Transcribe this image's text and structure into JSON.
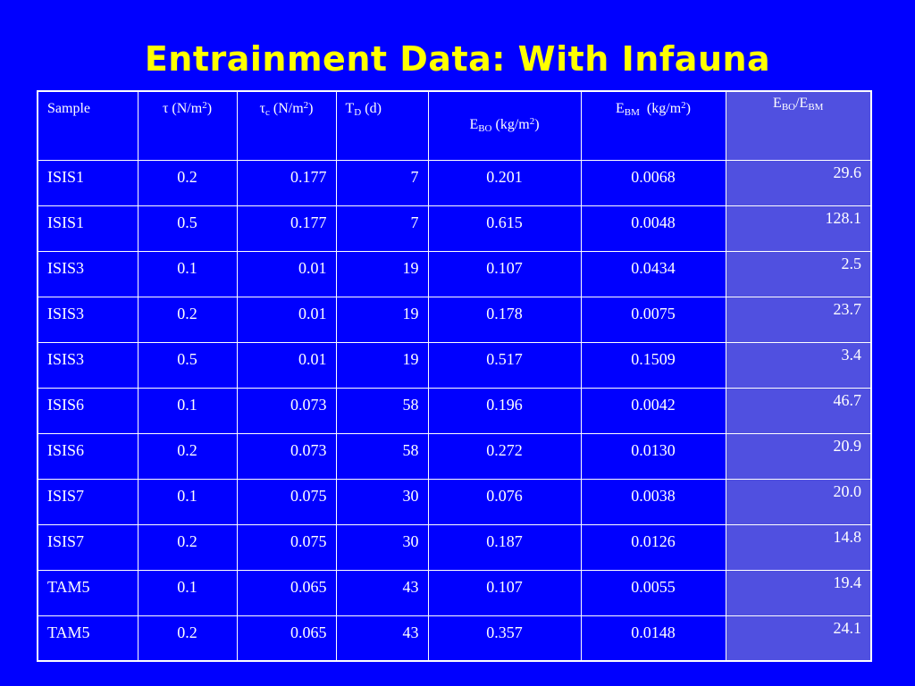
{
  "slide": {
    "title": "Entrainment Data: With Infauna"
  },
  "table": {
    "headers": {
      "sample": "Sample",
      "tau_symbol": "τ",
      "tau_unit": "(N/m",
      "tau_unit_exp": "2",
      "tau_unit_close": ")",
      "tauc_symbol": "τ",
      "tauc_sub": "c",
      "tauc_unit": "(N/m",
      "tauc_unit_exp": "2",
      "tauc_unit_close": ")",
      "td_symbol": "T",
      "td_sub": "D",
      "td_unit": "(d)",
      "ebo_symbol": "E",
      "ebo_sub": "BO",
      "ebo_unit": "(kg/m",
      "ebo_unit_exp": "2",
      "ebo_unit_close": ")",
      "ebm_symbol": "E",
      "ebm_sub": "BM",
      "ebm_unit": "(kg/m",
      "ebm_unit_exp": "2",
      "ebm_unit_close": ")",
      "ratio_num": "E",
      "ratio_num_sub": "BO",
      "ratio_slash": "/E",
      "ratio_den_sub": "BM"
    },
    "rows": [
      {
        "sample": "ISIS1",
        "tau": "0.2",
        "tau_c": "0.177",
        "t_d": "7",
        "e_bo": "0.201",
        "e_bm": "0.0068",
        "ratio": "29.6"
      },
      {
        "sample": "ISIS1",
        "tau": "0.5",
        "tau_c": "0.177",
        "t_d": "7",
        "e_bo": "0.615",
        "e_bm": "0.0048",
        "ratio": "128.1"
      },
      {
        "sample": "ISIS3",
        "tau": "0.1",
        "tau_c": "0.01",
        "t_d": "19",
        "e_bo": "0.107",
        "e_bm": "0.0434",
        "ratio": "2.5"
      },
      {
        "sample": "ISIS3",
        "tau": "0.2",
        "tau_c": "0.01",
        "t_d": "19",
        "e_bo": "0.178",
        "e_bm": "0.0075",
        "ratio": "23.7"
      },
      {
        "sample": "ISIS3",
        "tau": "0.5",
        "tau_c": "0.01",
        "t_d": "19",
        "e_bo": "0.517",
        "e_bm": "0.1509",
        "ratio": "3.4"
      },
      {
        "sample": "ISIS6",
        "tau": "0.1",
        "tau_c": "0.073",
        "t_d": "58",
        "e_bo": "0.196",
        "e_bm": "0.0042",
        "ratio": "46.7"
      },
      {
        "sample": "ISIS6",
        "tau": "0.2",
        "tau_c": "0.073",
        "t_d": "58",
        "e_bo": "0.272",
        "e_bm": "0.0130",
        "ratio": "20.9"
      },
      {
        "sample": "ISIS7",
        "tau": "0.1",
        "tau_c": "0.075",
        "t_d": "30",
        "e_bo": "0.076",
        "e_bm": "0.0038",
        "ratio": "20.0"
      },
      {
        "sample": "ISIS7",
        "tau": "0.2",
        "tau_c": "0.075",
        "t_d": "30",
        "e_bo": "0.187",
        "e_bm": "0.0126",
        "ratio": "14.8"
      },
      {
        "sample": "TAM5",
        "tau": "0.1",
        "tau_c": "0.065",
        "t_d": "43",
        "e_bo": "0.107",
        "e_bm": "0.0055",
        "ratio": "19.4"
      },
      {
        "sample": "TAM5",
        "tau": "0.2",
        "tau_c": "0.065",
        "t_d": "43",
        "e_bo": "0.357",
        "e_bm": "0.0148",
        "ratio": "24.1"
      }
    ]
  },
  "colors": {
    "background": "#0000ff",
    "title": "#ffff00",
    "text": "#ffffff",
    "ratio_column": "#5050e0"
  }
}
